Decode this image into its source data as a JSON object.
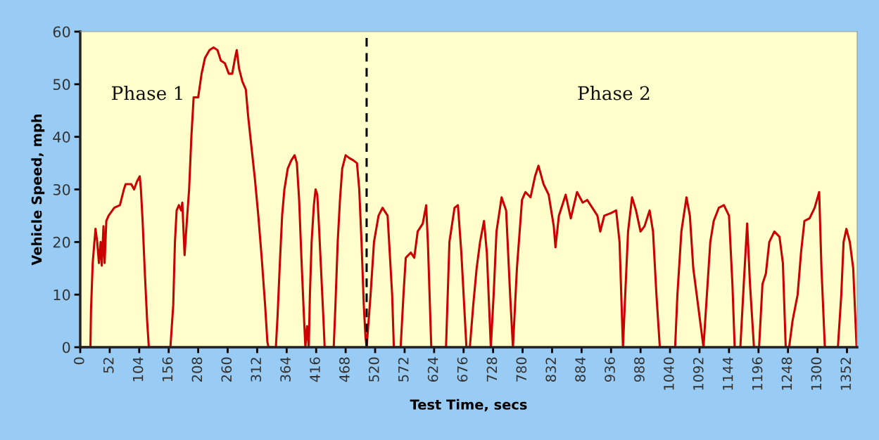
{
  "chart_data": {
    "type": "line",
    "xlabel": "Test Time, secs",
    "ylabel": "Vehicle Speed, mph",
    "xlim": [
      0,
      1370
    ],
    "ylim": [
      0,
      60
    ],
    "xticks": [
      0,
      52,
      104,
      156,
      208,
      260,
      312,
      364,
      416,
      468,
      520,
      572,
      624,
      676,
      728,
      780,
      832,
      884,
      936,
      988,
      1040,
      1092,
      1144,
      1196,
      1248,
      1300,
      1352
    ],
    "yticks": [
      0,
      10,
      20,
      30,
      40,
      50,
      60
    ],
    "grid": false,
    "legend": false,
    "marker": "none",
    "line_style": "solid",
    "ref_lines": [
      {
        "axis": "x",
        "value": 505,
        "color": "#000000",
        "line_style": "dashed"
      }
    ],
    "annotations": [
      "Phase 1",
      "Phase 2"
    ],
    "series": [
      {
        "color": "#cc0000",
        "x": [
          0,
          18,
          19,
          22,
          25,
          27,
          30,
          33,
          36,
          38,
          41,
          43,
          46,
          50,
          60,
          70,
          77,
          80,
          90,
          95,
          100,
          105,
          107,
          110,
          114,
          118,
          121,
          159,
          164,
          167,
          170,
          174,
          178,
          180,
          184,
          188,
          192,
          196,
          200,
          208,
          214,
          220,
          228,
          235,
          242,
          248,
          255,
          262,
          268,
          273,
          276,
          280,
          286,
          292,
          296,
          302,
          308,
          314,
          320,
          326,
          330,
          332,
          345,
          348,
          352,
          356,
          360,
          366,
          372,
          378,
          382,
          386,
          390,
          394,
          397,
          400,
          403,
          405,
          408,
          412,
          415,
          418,
          421,
          425,
          429,
          431,
          447,
          450,
          454,
          458,
          462,
          468,
          474,
          482,
          488,
          492,
          496,
          500,
          503,
          505,
          512,
          518,
          526,
          533,
          542,
          550,
          553,
          565,
          570,
          574,
          583,
          589,
          595,
          604,
          610,
          613,
          619,
          645,
          651,
          660,
          666,
          672,
          681,
          687,
          693,
          699,
          705,
          712,
          717,
          724,
          729,
          734,
          743,
          751,
          758,
          763,
          770,
          779,
          785,
          794,
          802,
          808,
          817,
          826,
          835,
          838,
          844,
          856,
          865,
          876,
          886,
          894,
          906,
          912,
          917,
          924,
          936,
          945,
          951,
          957,
          961,
          966,
          973,
          980,
          988,
          995,
          1004,
          1010,
          1016,
          1022,
          1049,
          1053,
          1060,
          1069,
          1075,
          1081,
          1087,
          1093,
          1099,
          1105,
          1111,
          1117,
          1126,
          1135,
          1144,
          1150,
          1154,
          1164,
          1170,
          1176,
          1181,
          1188,
          1197,
          1203,
          1209,
          1215,
          1224,
          1233,
          1239,
          1244,
          1250,
          1256,
          1265,
          1271,
          1277,
          1286,
          1295,
          1303,
          1307,
          1313,
          1336,
          1342,
          1346,
          1351,
          1357,
          1363,
          1369
        ],
        "values": [
          0,
          0,
          7,
          16,
          20,
          22.5,
          20,
          16,
          20,
          15.5,
          23,
          16,
          24,
          25,
          26.5,
          27,
          30,
          31,
          31,
          30,
          31.5,
          32.5,
          30,
          24,
          14,
          5,
          0,
          0,
          8,
          20,
          26,
          27,
          26,
          27.5,
          17.5,
          24,
          30,
          40,
          47.5,
          47.5,
          52,
          55,
          56.5,
          57,
          56.5,
          54.5,
          54,
          52,
          52,
          55,
          56.5,
          53,
          50.5,
          49,
          44,
          38,
          32,
          25,
          17,
          8,
          1,
          0,
          0,
          6,
          16,
          25,
          30,
          34,
          35.5,
          36.5,
          35,
          28,
          17,
          7,
          0,
          4,
          0,
          10,
          20,
          27,
          30,
          29,
          23,
          14,
          5,
          0,
          0,
          8,
          20,
          28,
          34,
          36.5,
          36,
          35.5,
          35,
          30,
          20,
          8,
          2,
          0,
          10,
          20,
          25,
          26.5,
          25,
          10,
          0,
          0,
          10,
          17,
          18,
          17,
          22,
          23.5,
          27,
          20,
          0,
          0,
          20,
          26.5,
          27,
          18,
          0,
          0,
          8,
          15,
          20,
          24,
          18,
          0,
          10,
          22,
          28.5,
          26,
          10,
          0,
          15,
          28,
          29.5,
          28.5,
          32.5,
          34.5,
          31,
          29,
          23,
          19,
          25,
          29,
          24.5,
          29.5,
          27.5,
          28,
          26,
          25,
          22,
          25,
          25.5,
          26,
          20,
          0,
          10,
          22,
          28.5,
          26,
          22,
          23,
          26,
          22,
          10,
          0,
          0,
          10,
          22,
          28.5,
          25,
          15,
          10,
          5,
          0,
          10,
          20,
          24,
          26.5,
          27,
          25,
          12,
          0,
          0,
          12,
          23.5,
          12,
          0,
          0,
          12,
          14,
          20,
          22,
          21,
          16,
          0,
          0,
          5,
          10,
          18,
          24,
          24.5,
          26.5,
          29.5,
          15,
          0,
          0,
          10,
          20,
          22.5,
          20,
          15,
          0
        ]
      }
    ]
  }
}
